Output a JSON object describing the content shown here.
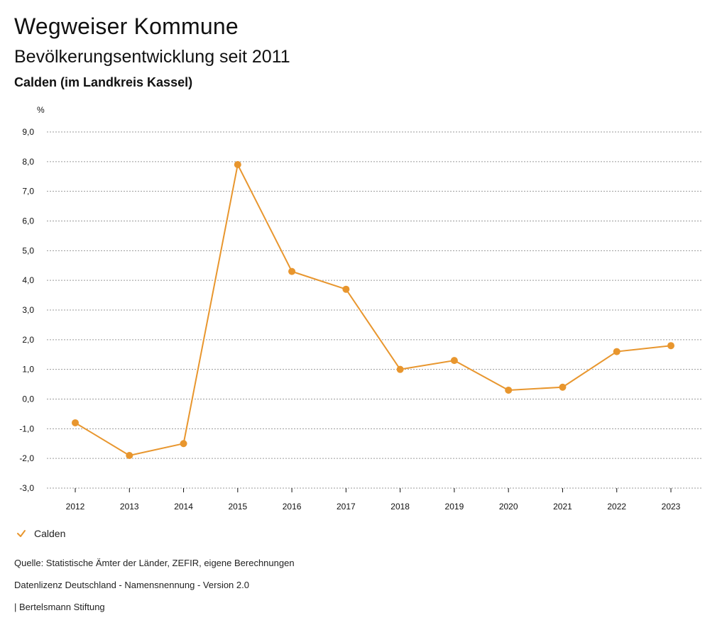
{
  "header": {
    "title": "Wegweiser Kommune",
    "subtitle": "Bevölkerungsentwicklung seit 2011",
    "region": "Calden (im Landkreis Kassel)"
  },
  "legend": {
    "label": "Calden"
  },
  "footer": {
    "source": "Quelle: Statistische Ämter der Länder, ZEFIR, eigene Berechnungen",
    "license": "Datenlizenz Deutschland - Namensnennung - Version 2.0",
    "publisher": "| Bertelsmann Stiftung"
  },
  "colors": {
    "series": "#E8962E",
    "grid": "#9A9A9A",
    "axis": "#111111"
  },
  "chart_data": {
    "type": "line",
    "title": "Bevölkerungsentwicklung seit 2011",
    "xlabel": "",
    "ylabel": "%",
    "categories": [
      "2012",
      "2013",
      "2014",
      "2015",
      "2016",
      "2017",
      "2018",
      "2019",
      "2020",
      "2021",
      "2022",
      "2023"
    ],
    "series": [
      {
        "name": "Calden",
        "values": [
          -0.8,
          -1.9,
          -1.5,
          7.9,
          4.3,
          3.7,
          1.0,
          1.3,
          0.3,
          0.4,
          1.6,
          1.8
        ]
      }
    ],
    "ylim": [
      -3,
      9
    ],
    "yticks": [
      9,
      8,
      7,
      6,
      5,
      4,
      3,
      2,
      1,
      0,
      -1,
      -2,
      -3
    ],
    "ytick_labels": [
      "9,0",
      "8,0",
      "7,0",
      "6,0",
      "5,0",
      "4,0",
      "3,0",
      "2,0",
      "1,0",
      "0,0",
      "-1,0",
      "-2,0",
      "-3,0"
    ],
    "grid": true,
    "legend_position": "bottom-left"
  }
}
